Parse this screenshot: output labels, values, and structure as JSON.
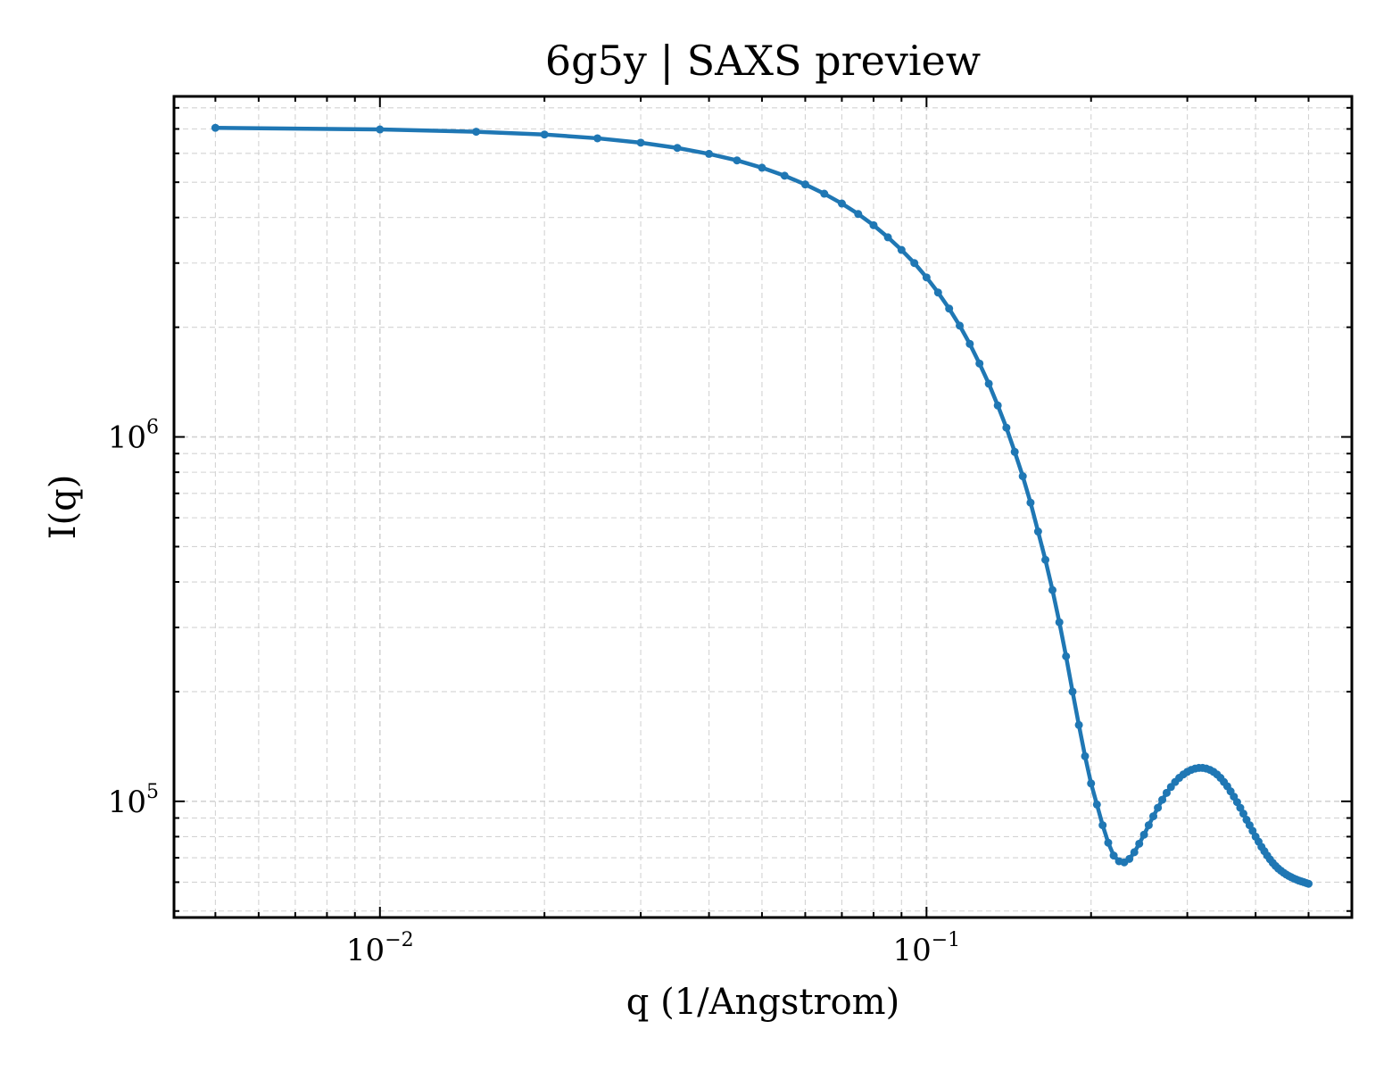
{
  "chart_data": {
    "type": "line",
    "title": "6g5y | SAXS preview",
    "xlabel": "q (1/Angstrom)",
    "ylabel": "I(q)",
    "xscale": "log",
    "yscale": "log",
    "xlim": [
      0.0042,
      0.6
    ],
    "ylim": [
      48000,
      8600000
    ],
    "grid": true,
    "grid_minor": true,
    "tick_direction": "in",
    "x_ticks": [
      {
        "value": 0.01,
        "base": "10",
        "exponent": "−2"
      },
      {
        "value": 0.1,
        "base": "10",
        "exponent": "−1"
      }
    ],
    "y_ticks": [
      {
        "value": 100000,
        "base": "10",
        "exponent": "5"
      },
      {
        "value": 1000000,
        "base": "10",
        "exponent": "6"
      }
    ],
    "colors": {
      "line": "#1f77b4",
      "grid": "#d3d3d3",
      "axes": "#000000"
    },
    "series": [
      {
        "marker": "circle",
        "x": [
          0.005,
          0.01,
          0.015,
          0.02,
          0.025,
          0.03,
          0.035,
          0.04,
          0.045,
          0.05,
          0.055,
          0.06,
          0.065,
          0.07,
          0.075,
          0.08,
          0.085,
          0.09,
          0.095,
          0.1,
          0.105,
          0.11,
          0.115,
          0.12,
          0.125,
          0.13,
          0.135,
          0.14,
          0.145,
          0.15,
          0.155,
          0.16,
          0.165,
          0.17,
          0.175,
          0.18,
          0.185,
          0.19,
          0.195,
          0.2,
          0.205,
          0.21,
          0.215,
          0.22,
          0.225,
          0.23,
          0.235,
          0.24,
          0.245,
          0.25,
          0.255,
          0.26,
          0.265,
          0.27,
          0.275,
          0.28,
          0.285,
          0.29,
          0.295,
          0.3,
          0.305,
          0.31,
          0.315,
          0.32,
          0.325,
          0.33,
          0.335,
          0.34,
          0.345,
          0.35,
          0.355,
          0.36,
          0.365,
          0.37,
          0.375,
          0.38,
          0.385,
          0.39,
          0.395,
          0.4,
          0.405,
          0.41,
          0.415,
          0.42,
          0.425,
          0.43,
          0.435,
          0.44,
          0.445,
          0.45,
          0.455,
          0.46,
          0.465,
          0.47,
          0.475,
          0.48,
          0.485,
          0.49,
          0.495,
          0.5
        ],
        "y": [
          7050000,
          6980000,
          6880000,
          6760000,
          6600000,
          6420000,
          6210000,
          5980000,
          5740000,
          5480000,
          5210000,
          4930000,
          4650000,
          4370000,
          4090000,
          3810000,
          3530000,
          3260000,
          3000000,
          2740000,
          2490000,
          2250000,
          2020000,
          1800000,
          1590000,
          1400000,
          1220000,
          1060000,
          910000,
          780000,
          660000,
          550000,
          460000,
          380000,
          310000,
          250000,
          200000,
          162000,
          133000,
          112000,
          98000,
          86000,
          77000,
          71000,
          68500,
          68000,
          69500,
          72500,
          76500,
          81000,
          86000,
          91000,
          96000,
          101000,
          105500,
          109500,
          113000,
          116000,
          118500,
          120500,
          122000,
          123000,
          123500,
          123500,
          123000,
          122000,
          120500,
          118500,
          116000,
          113000,
          110000,
          106500,
          103000,
          99500,
          96000,
          92500,
          89000,
          86000,
          83000,
          80000,
          77500,
          75000,
          73000,
          71000,
          69300,
          67800,
          66500,
          65400,
          64500,
          63700,
          63000,
          62400,
          61900,
          61400,
          61000,
          60600,
          60300,
          60000,
          59700,
          59400
        ]
      }
    ]
  }
}
